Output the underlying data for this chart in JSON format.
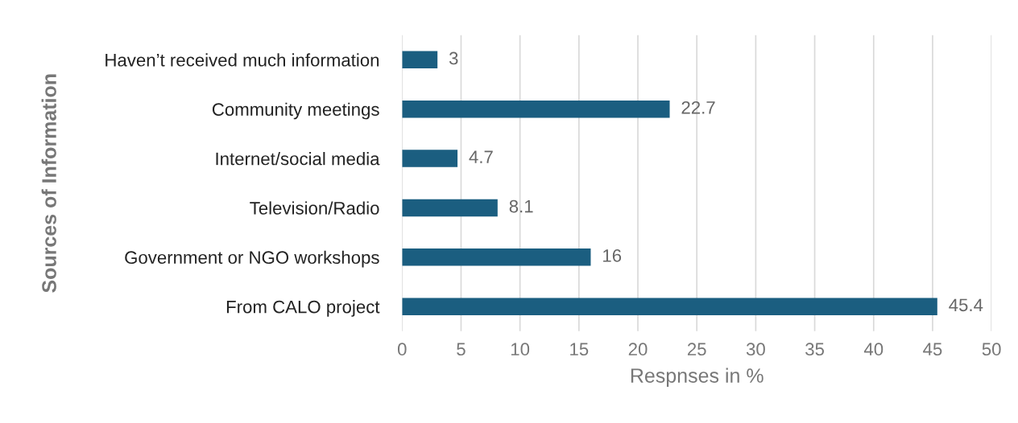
{
  "chart_data": {
    "type": "bar",
    "orientation": "horizontal",
    "xlabel": "Respnses in %",
    "ylabel": "Sources of Information",
    "categories": [
      "Haven’t received much information",
      "Community meetings",
      "Internet/social media",
      "Television/Radio",
      "Government or NGO workshops",
      "From CALO project"
    ],
    "values": [
      3,
      22.7,
      4.7,
      8.1,
      16,
      45.4
    ],
    "color": "#1b5e80",
    "xlim": [
      0,
      50
    ],
    "xticks": [
      0,
      5,
      10,
      15,
      20,
      25,
      30,
      35,
      40,
      45,
      50
    ],
    "grid": "x",
    "data_labels": true
  }
}
